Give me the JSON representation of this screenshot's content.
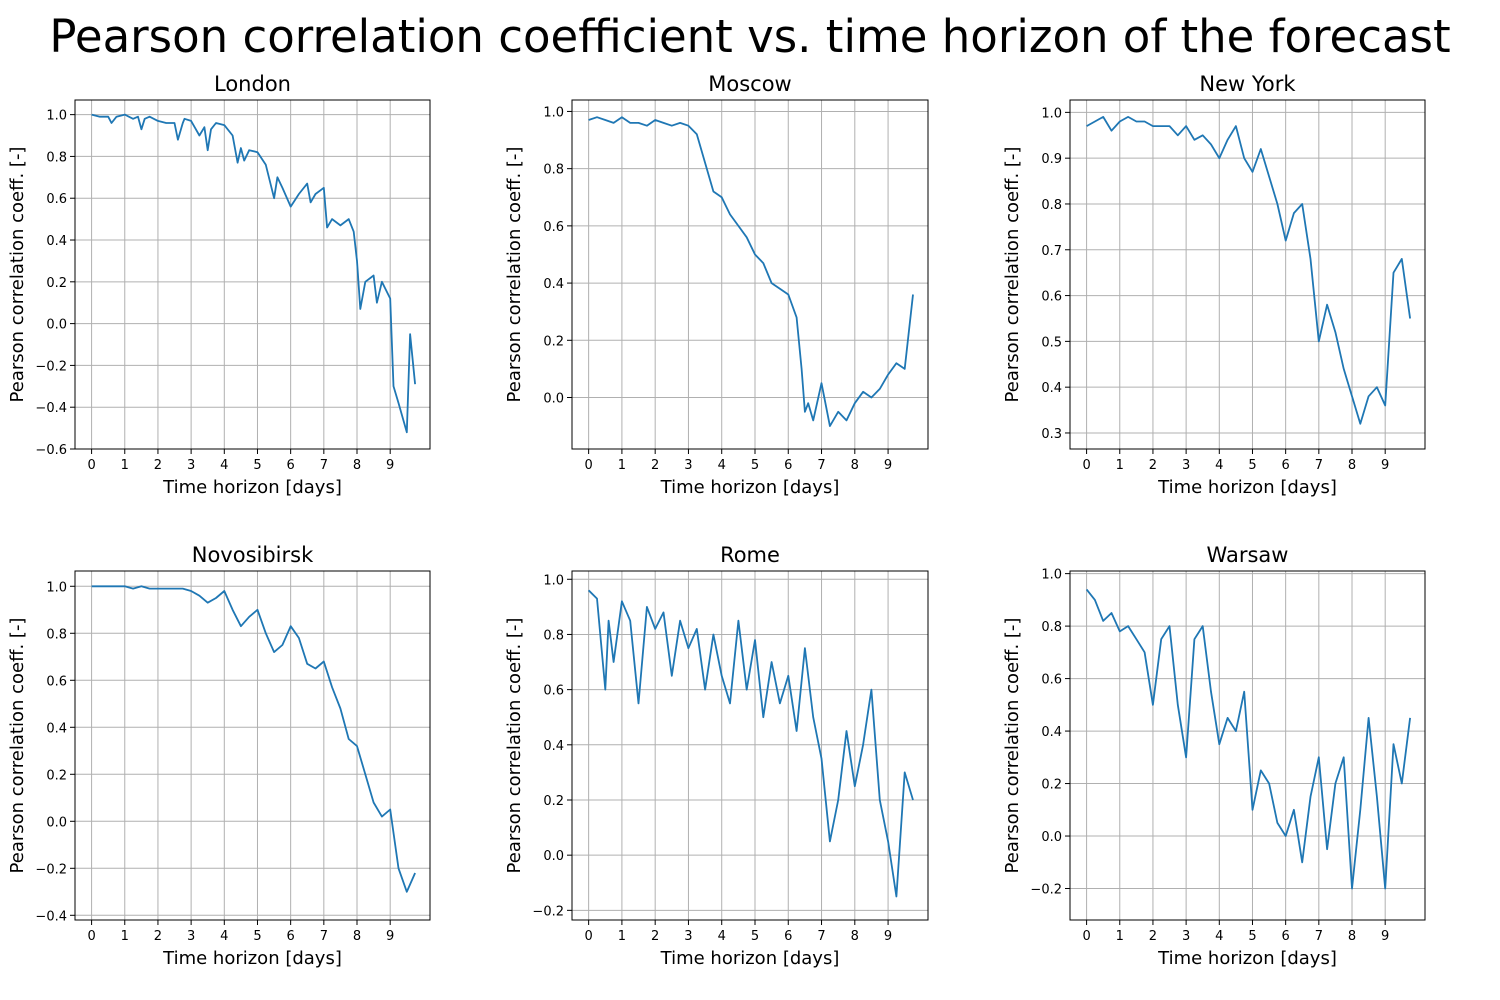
{
  "figure": {
    "title": "Pearson correlation coefficient vs. time horizon of the forecast"
  },
  "chart_data": [
    {
      "type": "line",
      "title": "London",
      "xlabel": "Time horizon [days]",
      "ylabel": "Pearson correlation coeff. [-]",
      "xlim": [
        -0.5,
        10.2
      ],
      "ylim": [
        -0.6,
        1.07
      ],
      "xticks": [
        0,
        1,
        2,
        3,
        4,
        5,
        6,
        7,
        8,
        9
      ],
      "yticks": [
        -0.6,
        -0.4,
        -0.2,
        0.0,
        0.2,
        0.4,
        0.6,
        0.8,
        1.0
      ],
      "ytick_labels": [
        "−0.6",
        "−0.4",
        "−0.2",
        "0.0",
        "0.2",
        "0.4",
        "0.6",
        "0.8",
        "1.0"
      ],
      "grid": true,
      "color": "#1f77b4",
      "series": [
        {
          "x": [
            0,
            0.25,
            0.5,
            0.6,
            0.75,
            1,
            1.25,
            1.4,
            1.5,
            1.6,
            1.75,
            2,
            2.25,
            2.5,
            2.6,
            2.75,
            2.8,
            3,
            3.25,
            3.4,
            3.5,
            3.6,
            3.75,
            4,
            4.25,
            4.4,
            4.5,
            4.6,
            4.75,
            5,
            5.25,
            5.5,
            5.6,
            5.75,
            6,
            6.25,
            6.5,
            6.6,
            6.75,
            7,
            7.1,
            7.25,
            7.5,
            7.75,
            7.9,
            8,
            8.1,
            8.25,
            8.5,
            8.6,
            8.75,
            9,
            9.1,
            9.25,
            9.5,
            9.6,
            9.75
          ],
          "values": [
            1.0,
            0.99,
            0.99,
            0.96,
            0.99,
            1.0,
            0.98,
            0.99,
            0.93,
            0.98,
            0.99,
            0.97,
            0.96,
            0.96,
            0.88,
            0.96,
            0.98,
            0.97,
            0.9,
            0.94,
            0.83,
            0.93,
            0.96,
            0.95,
            0.9,
            0.77,
            0.84,
            0.78,
            0.83,
            0.82,
            0.76,
            0.6,
            0.7,
            0.65,
            0.56,
            0.62,
            0.67,
            0.58,
            0.62,
            0.65,
            0.46,
            0.5,
            0.47,
            0.5,
            0.44,
            0.3,
            0.07,
            0.2,
            0.23,
            0.1,
            0.2,
            0.12,
            -0.3,
            -0.38,
            -0.52,
            -0.05,
            -0.29
          ]
        }
      ]
    },
    {
      "type": "line",
      "title": "Moscow",
      "xlabel": "Time horizon [days]",
      "ylabel": "Pearson correlation coeff. [-]",
      "xlim": [
        -0.5,
        10.2
      ],
      "ylim": [
        -0.18,
        1.04
      ],
      "xticks": [
        0,
        1,
        2,
        3,
        4,
        5,
        6,
        7,
        8,
        9
      ],
      "yticks": [
        0.0,
        0.2,
        0.4,
        0.6,
        0.8,
        1.0
      ],
      "ytick_labels": [
        "0.0",
        "0.2",
        "0.4",
        "0.6",
        "0.8",
        "1.0"
      ],
      "grid": true,
      "color": "#1f77b4",
      "series": [
        {
          "x": [
            0,
            0.25,
            0.5,
            0.75,
            1,
            1.25,
            1.5,
            1.75,
            2,
            2.25,
            2.5,
            2.75,
            3,
            3.25,
            3.5,
            3.75,
            4,
            4.25,
            4.5,
            4.75,
            5,
            5.25,
            5.5,
            5.75,
            6,
            6.25,
            6.4,
            6.5,
            6.6,
            6.75,
            7,
            7.25,
            7.5,
            7.75,
            8,
            8.25,
            8.5,
            8.75,
            9,
            9.25,
            9.5,
            9.75
          ],
          "values": [
            0.97,
            0.98,
            0.97,
            0.96,
            0.98,
            0.96,
            0.96,
            0.95,
            0.97,
            0.96,
            0.95,
            0.96,
            0.95,
            0.92,
            0.82,
            0.72,
            0.7,
            0.64,
            0.6,
            0.56,
            0.5,
            0.47,
            0.4,
            0.38,
            0.36,
            0.28,
            0.1,
            -0.05,
            -0.02,
            -0.08,
            0.05,
            -0.1,
            -0.05,
            -0.08,
            -0.02,
            0.02,
            0.0,
            0.03,
            0.08,
            0.12,
            0.1,
            0.36
          ]
        }
      ]
    },
    {
      "type": "line",
      "title": "New York",
      "xlabel": "Time horizon [days]",
      "ylabel": "Pearson correlation coeff. [-]",
      "xlim": [
        -0.5,
        10.2
      ],
      "ylim": [
        0.265,
        1.027
      ],
      "xticks": [
        0,
        1,
        2,
        3,
        4,
        5,
        6,
        7,
        8,
        9
      ],
      "yticks": [
        0.3,
        0.4,
        0.5,
        0.6,
        0.7,
        0.8,
        0.9,
        1.0
      ],
      "ytick_labels": [
        "0.3",
        "0.4",
        "0.5",
        "0.6",
        "0.7",
        "0.8",
        "0.9",
        "1.0"
      ],
      "grid": true,
      "color": "#1f77b4",
      "series": [
        {
          "x": [
            0,
            0.25,
            0.5,
            0.75,
            1,
            1.25,
            1.5,
            1.75,
            2,
            2.25,
            2.5,
            2.75,
            3,
            3.25,
            3.5,
            3.75,
            4,
            4.25,
            4.5,
            4.75,
            5,
            5.25,
            5.5,
            5.75,
            6,
            6.25,
            6.5,
            6.75,
            7,
            7.25,
            7.5,
            7.75,
            8,
            8.25,
            8.5,
            8.75,
            9,
            9.25,
            9.5,
            9.75
          ],
          "values": [
            0.97,
            0.98,
            0.99,
            0.96,
            0.98,
            0.99,
            0.98,
            0.98,
            0.97,
            0.97,
            0.97,
            0.95,
            0.97,
            0.94,
            0.95,
            0.93,
            0.9,
            0.94,
            0.97,
            0.9,
            0.87,
            0.92,
            0.86,
            0.8,
            0.72,
            0.78,
            0.8,
            0.68,
            0.5,
            0.58,
            0.52,
            0.44,
            0.38,
            0.32,
            0.38,
            0.4,
            0.36,
            0.65,
            0.68,
            0.55
          ]
        }
      ]
    },
    {
      "type": "line",
      "title": "Novosibirsk",
      "xlabel": "Time horizon [days]",
      "ylabel": "Pearson correlation coeff. [-]",
      "xlim": [
        -0.5,
        10.2
      ],
      "ylim": [
        -0.42,
        1.065
      ],
      "xticks": [
        0,
        1,
        2,
        3,
        4,
        5,
        6,
        7,
        8,
        9
      ],
      "yticks": [
        -0.4,
        -0.2,
        0.0,
        0.2,
        0.4,
        0.6,
        0.8,
        1.0
      ],
      "ytick_labels": [
        "−0.4",
        "−0.2",
        "0.0",
        "0.2",
        "0.4",
        "0.6",
        "0.8",
        "1.0"
      ],
      "grid": true,
      "color": "#1f77b4",
      "series": [
        {
          "x": [
            0,
            0.25,
            0.5,
            0.75,
            1,
            1.25,
            1.5,
            1.75,
            2,
            2.25,
            2.5,
            2.75,
            3,
            3.25,
            3.5,
            3.75,
            4,
            4.25,
            4.5,
            4.75,
            5,
            5.25,
            5.5,
            5.75,
            6,
            6.25,
            6.5,
            6.75,
            7,
            7.25,
            7.5,
            7.75,
            8,
            8.25,
            8.5,
            8.75,
            9,
            9.25,
            9.5,
            9.75
          ],
          "values": [
            1.0,
            1.0,
            1.0,
            1.0,
            1.0,
            0.99,
            1.0,
            0.99,
            0.99,
            0.99,
            0.99,
            0.99,
            0.98,
            0.96,
            0.93,
            0.95,
            0.98,
            0.9,
            0.83,
            0.87,
            0.9,
            0.8,
            0.72,
            0.75,
            0.83,
            0.78,
            0.67,
            0.65,
            0.68,
            0.57,
            0.48,
            0.35,
            0.32,
            0.2,
            0.08,
            0.02,
            0.05,
            -0.2,
            -0.3,
            -0.22
          ]
        }
      ]
    },
    {
      "type": "line",
      "title": "Rome",
      "xlabel": "Time horizon [days]",
      "ylabel": "Pearson correlation coeff. [-]",
      "xlim": [
        -0.5,
        10.2
      ],
      "ylim": [
        -0.235,
        1.03
      ],
      "xticks": [
        0,
        1,
        2,
        3,
        4,
        5,
        6,
        7,
        8,
        9
      ],
      "yticks": [
        -0.2,
        0.0,
        0.2,
        0.4,
        0.6,
        0.8,
        1.0
      ],
      "ytick_labels": [
        "−0.2",
        "0.0",
        "0.2",
        "0.4",
        "0.6",
        "0.8",
        "1.0"
      ],
      "grid": true,
      "color": "#1f77b4",
      "series": [
        {
          "x": [
            0,
            0.25,
            0.5,
            0.6,
            0.75,
            1,
            1.25,
            1.5,
            1.75,
            2,
            2.25,
            2.5,
            2.75,
            3,
            3.25,
            3.5,
            3.75,
            4,
            4.25,
            4.5,
            4.75,
            5,
            5.25,
            5.5,
            5.75,
            6,
            6.25,
            6.5,
            6.75,
            7,
            7.25,
            7.5,
            7.75,
            8,
            8.25,
            8.5,
            8.75,
            9,
            9.25,
            9.5,
            9.75
          ],
          "values": [
            0.96,
            0.93,
            0.6,
            0.85,
            0.7,
            0.92,
            0.85,
            0.55,
            0.9,
            0.82,
            0.88,
            0.65,
            0.85,
            0.75,
            0.82,
            0.6,
            0.8,
            0.65,
            0.55,
            0.85,
            0.6,
            0.78,
            0.5,
            0.7,
            0.55,
            0.65,
            0.45,
            0.75,
            0.5,
            0.35,
            0.05,
            0.2,
            0.45,
            0.25,
            0.4,
            0.6,
            0.2,
            0.05,
            -0.15,
            0.3,
            0.2
          ]
        }
      ]
    },
    {
      "type": "line",
      "title": "Warsaw",
      "xlabel": "Time horizon [days]",
      "ylabel": "Pearson correlation coeff. [-]",
      "xlim": [
        -0.5,
        10.2
      ],
      "ylim": [
        -0.32,
        1.01
      ],
      "xticks": [
        0,
        1,
        2,
        3,
        4,
        5,
        6,
        7,
        8,
        9
      ],
      "yticks": [
        -0.2,
        0.0,
        0.2,
        0.4,
        0.6,
        0.8,
        1.0
      ],
      "ytick_labels": [
        "−0.2",
        "0.0",
        "0.2",
        "0.4",
        "0.6",
        "0.8",
        "1.0"
      ],
      "grid": true,
      "color": "#1f77b4",
      "series": [
        {
          "x": [
            0,
            0.25,
            0.5,
            0.75,
            1,
            1.25,
            1.5,
            1.75,
            2,
            2.25,
            2.5,
            2.75,
            3,
            3.25,
            3.5,
            3.75,
            4,
            4.25,
            4.5,
            4.75,
            5,
            5.25,
            5.5,
            5.75,
            6,
            6.25,
            6.5,
            6.75,
            7,
            7.25,
            7.5,
            7.75,
            8,
            8.25,
            8.5,
            8.75,
            9,
            9.25,
            9.5,
            9.75
          ],
          "values": [
            0.94,
            0.9,
            0.82,
            0.85,
            0.78,
            0.8,
            0.75,
            0.7,
            0.5,
            0.75,
            0.8,
            0.5,
            0.3,
            0.75,
            0.8,
            0.55,
            0.35,
            0.45,
            0.4,
            0.55,
            0.1,
            0.25,
            0.2,
            0.05,
            0.0,
            0.1,
            -0.1,
            0.15,
            0.3,
            -0.05,
            0.2,
            0.3,
            -0.2,
            0.1,
            0.45,
            0.15,
            -0.2,
            0.35,
            0.2,
            0.45
          ]
        }
      ]
    }
  ]
}
